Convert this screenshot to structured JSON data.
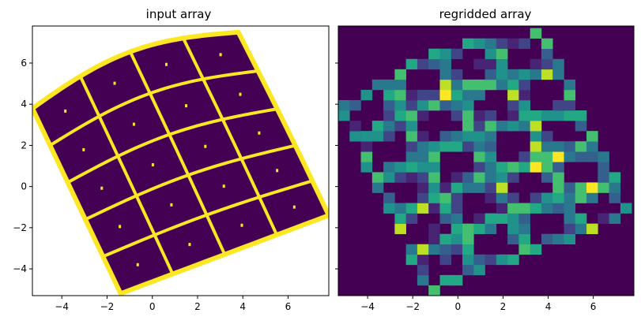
{
  "chart_data": [
    {
      "type": "heatmap",
      "title": "input array",
      "xlabel": "",
      "ylabel": "",
      "xlim": [
        -5.3,
        7.8
      ],
      "ylim": [
        -5.3,
        7.8
      ],
      "x_ticks": [
        -4,
        -2,
        0,
        2,
        4,
        6
      ],
      "y_ticks": [
        -4,
        -2,
        0,
        2,
        4,
        6
      ],
      "grid": false,
      "colormap": "viridis",
      "background_color": "#ffffff",
      "field_color": "#440154",
      "line_color": "#fde725",
      "corners": {
        "top_left": [
          -5.3,
          3.8
        ],
        "top_right": [
          3.8,
          7.5
        ],
        "bottom_right": [
          7.8,
          -1.4
        ],
        "bottom_left": [
          -1.4,
          -5.2
        ]
      },
      "grid_divisions": [
        4,
        5
      ]
    },
    {
      "type": "heatmap",
      "title": "regridded array",
      "xlabel": "",
      "ylabel": "",
      "xlim": [
        -5.3,
        7.8
      ],
      "ylim": [
        -5.3,
        7.8
      ],
      "x_ticks": [
        -4,
        -2,
        0,
        2,
        4,
        6
      ],
      "y_ticks": [
        -4,
        -2,
        0,
        2,
        4,
        6
      ],
      "sharey": true,
      "grid": false,
      "colormap": "viridis",
      "cell_size": 0.5,
      "background_color": "#440154"
    }
  ]
}
